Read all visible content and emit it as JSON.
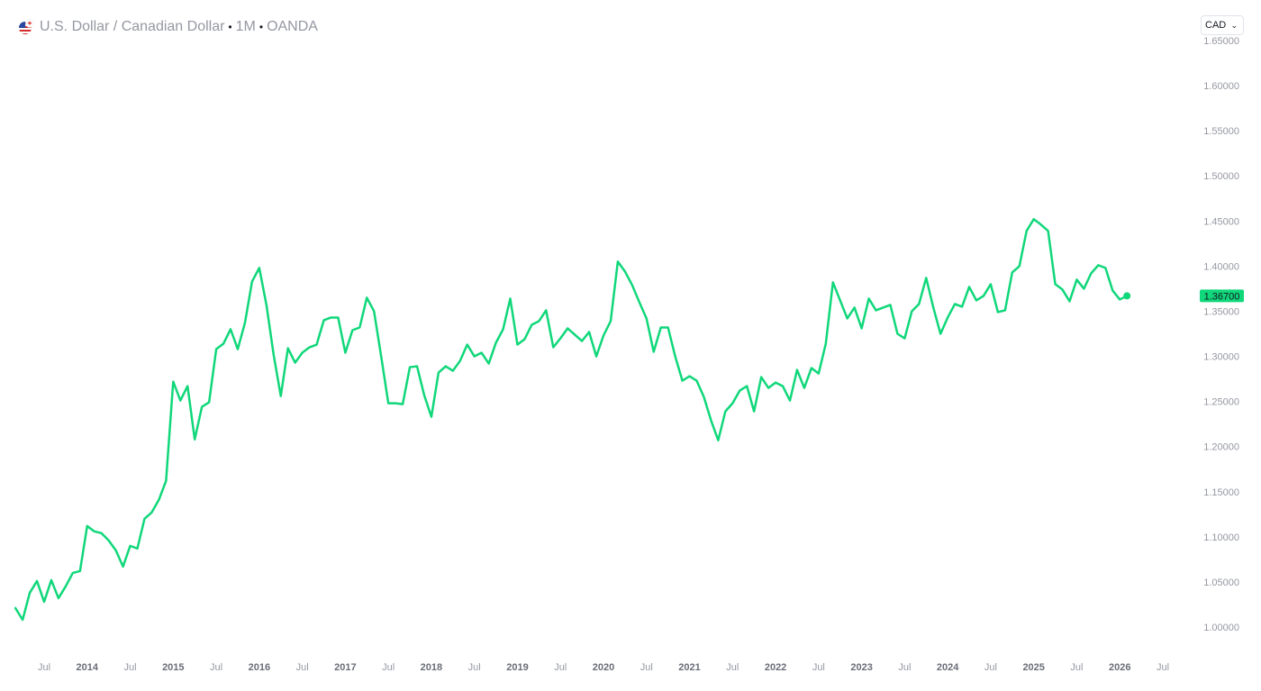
{
  "header": {
    "pair": "U.S. Dollar / Canadian Dollar",
    "interval": "1M",
    "source": "OANDA",
    "flag_icon": "usd-cad-flag-icon"
  },
  "currency_select": {
    "value": "CAD"
  },
  "colors": {
    "line": "#10d77a",
    "last_badge": "#10d77a",
    "tick_text": "#9598a1"
  },
  "chart_data": {
    "type": "line",
    "title": "U.S. Dollar / Canadian Dollar · 1M · OANDA",
    "xlabel": "",
    "ylabel": "",
    "x_start": "2013-03",
    "x_end": "2026-01",
    "xlim": [
      "2013-02",
      "2026-12"
    ],
    "ylim": [
      0.97,
      1.655
    ],
    "y_ticks": [
      "1.00000",
      "1.05000",
      "1.10000",
      "1.15000",
      "1.20000",
      "1.25000",
      "1.30000",
      "1.35000",
      "1.40000",
      "1.45000",
      "1.50000",
      "1.55000",
      "1.60000",
      "1.65000"
    ],
    "x_ticks": [
      {
        "label": "Jul",
        "date": "2013-07"
      },
      {
        "label": "2014",
        "date": "2014-01"
      },
      {
        "label": "Jul",
        "date": "2014-07"
      },
      {
        "label": "2015",
        "date": "2015-01"
      },
      {
        "label": "Jul",
        "date": "2015-07"
      },
      {
        "label": "2016",
        "date": "2016-01"
      },
      {
        "label": "Jul",
        "date": "2016-07"
      },
      {
        "label": "2017",
        "date": "2017-01"
      },
      {
        "label": "Jul",
        "date": "2017-07"
      },
      {
        "label": "2018",
        "date": "2018-01"
      },
      {
        "label": "Jul",
        "date": "2018-07"
      },
      {
        "label": "2019",
        "date": "2019-01"
      },
      {
        "label": "Jul",
        "date": "2019-07"
      },
      {
        "label": "2020",
        "date": "2020-01"
      },
      {
        "label": "Jul",
        "date": "2020-07"
      },
      {
        "label": "2021",
        "date": "2021-01"
      },
      {
        "label": "Jul",
        "date": "2021-07"
      },
      {
        "label": "2022",
        "date": "2022-01"
      },
      {
        "label": "Jul",
        "date": "2022-07"
      },
      {
        "label": "2023",
        "date": "2023-01"
      },
      {
        "label": "Jul",
        "date": "2023-07"
      },
      {
        "label": "2024",
        "date": "2024-01"
      },
      {
        "label": "Jul",
        "date": "2024-07"
      },
      {
        "label": "2025",
        "date": "2025-01"
      },
      {
        "label": "Jul",
        "date": "2025-07"
      },
      {
        "label": "2026",
        "date": "2026-01"
      },
      {
        "label": "Jul",
        "date": "2026-07"
      }
    ],
    "last_value": "1.36700",
    "series": [
      {
        "values": [
          1.021,
          1.008,
          1.038,
          1.051,
          1.028,
          1.052,
          1.032,
          1.045,
          1.06,
          1.062,
          1.112,
          1.106,
          1.104,
          1.096,
          1.085,
          1.067,
          1.09,
          1.087,
          1.12,
          1.127,
          1.141,
          1.162,
          1.272,
          1.251,
          1.267,
          1.208,
          1.244,
          1.249,
          1.308,
          1.314,
          1.33,
          1.308,
          1.337,
          1.383,
          1.398,
          1.357,
          1.302,
          1.256,
          1.309,
          1.293,
          1.304,
          1.31,
          1.313,
          1.34,
          1.343,
          1.343,
          1.304,
          1.329,
          1.332,
          1.365,
          1.35,
          1.3,
          1.248,
          1.248,
          1.247,
          1.288,
          1.289,
          1.257,
          1.233,
          1.282,
          1.289,
          1.284,
          1.295,
          1.313,
          1.3,
          1.304,
          1.292,
          1.315,
          1.33,
          1.364,
          1.313,
          1.319,
          1.335,
          1.339,
          1.351,
          1.31,
          1.32,
          1.331,
          1.324,
          1.317,
          1.327,
          1.3,
          1.323,
          1.339,
          1.405,
          1.394,
          1.379,
          1.36,
          1.342,
          1.305,
          1.332,
          1.332,
          1.3,
          1.273,
          1.278,
          1.273,
          1.255,
          1.229,
          1.207,
          1.239,
          1.248,
          1.262,
          1.267,
          1.239,
          1.277,
          1.265,
          1.271,
          1.267,
          1.251,
          1.285,
          1.265,
          1.287,
          1.281,
          1.314,
          1.382,
          1.362,
          1.342,
          1.354,
          1.331,
          1.364,
          1.351,
          1.354,
          1.357,
          1.325,
          1.32,
          1.35,
          1.358,
          1.387,
          1.354,
          1.325,
          1.343,
          1.358,
          1.355,
          1.377,
          1.362,
          1.367,
          1.38,
          1.349,
          1.351,
          1.393,
          1.4,
          1.439,
          1.452,
          1.446,
          1.439,
          1.38,
          1.374,
          1.361,
          1.385,
          1.375,
          1.392,
          1.401,
          1.398,
          1.373,
          1.363,
          1.367
        ]
      }
    ]
  }
}
